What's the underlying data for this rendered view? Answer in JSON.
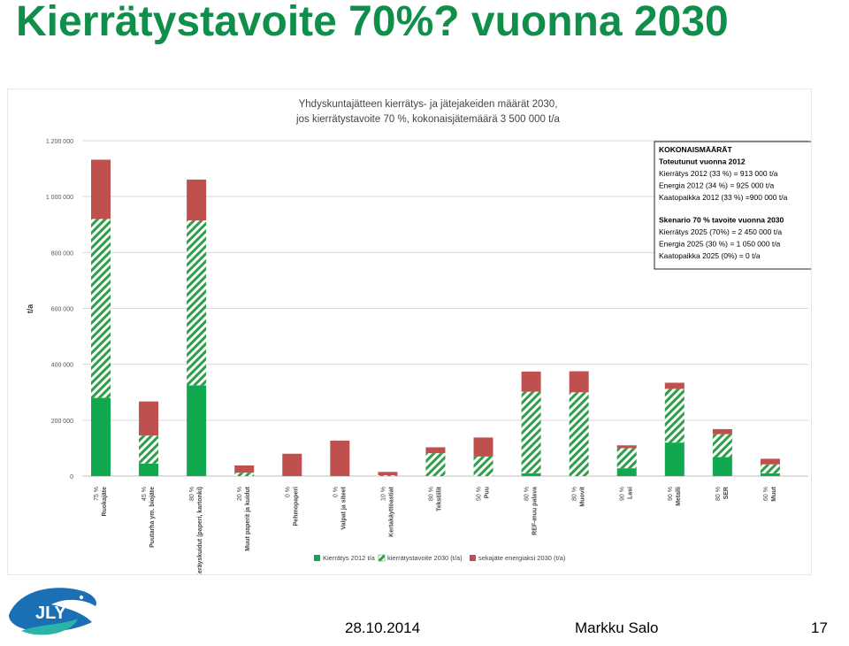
{
  "slide": {
    "title": "Kierrätystavoite 70%? vuonna 2030",
    "footer": {
      "date": "28.10.2014",
      "author": "Markku Salo",
      "page": "17"
    },
    "logo_text": "JLY"
  },
  "colors": {
    "green": "#12a84f",
    "hatch_green": "#2e9e4a",
    "red": "#c0504d",
    "title_green": "#0f8f4a",
    "logo_blue": "#1a6fb5",
    "logo_teal": "#2bb3a8"
  },
  "chart_data": {
    "type": "bar",
    "stacked": true,
    "title_lines": [
      "Yhdyskuntajätteen kierrätys- ja jätejakeiden määrät 2030,",
      "jos kierrätystavoite 70 %, kokonaisjätemäärä 3 500 000 t/a"
    ],
    "ylabel": "t/a",
    "ylim": [
      0,
      1200000
    ],
    "yticks": [
      0,
      200000,
      400000,
      600000,
      800000,
      1000000,
      1200000
    ],
    "ytick_labels": [
      "0",
      "200 000",
      "400 000",
      "600 000",
      "800 000",
      "1 000 000",
      "1 200 000"
    ],
    "grid": true,
    "legend_position": "bottom",
    "categories": [
      {
        "pct": "75 %",
        "name": "Ruokajäte"
      },
      {
        "pct": "45 %",
        "name": "Puutarha ym. biojäte"
      },
      {
        "pct": "80 %",
        "name": "Keräyskuidut (paperi, kartonki)"
      },
      {
        "pct": "20 %",
        "name": "Muut paperit ja kuidut"
      },
      {
        "pct": "0 %",
        "name": "Pehmopaperi"
      },
      {
        "pct": "0 %",
        "name": "Vaipat ja siteet"
      },
      {
        "pct": "10 %",
        "name": "Kertakäyttöastiat"
      },
      {
        "pct": "80 %",
        "name": "Tekstiilit"
      },
      {
        "pct": "50 %",
        "name": "Puu"
      },
      {
        "pct": "80 %",
        "name": "REF-muu palava"
      },
      {
        "pct": "80 %",
        "name": "Muovit"
      },
      {
        "pct": "90 %",
        "name": "Lasi"
      },
      {
        "pct": "90 %",
        "name": "Metalli"
      },
      {
        "pct": "80 %",
        "name": "SER"
      },
      {
        "pct": "60 %",
        "name": "Muut"
      }
    ],
    "series": [
      {
        "name": "Kierrätys 2012 t/a",
        "style": "solid-green",
        "values": [
          280000,
          45000,
          325000,
          0,
          0,
          0,
          0,
          0,
          0,
          10000,
          0,
          28000,
          120000,
          68000,
          10000
        ]
      },
      {
        "name": "kierrätystavoite 2030 (t/a)",
        "style": "hatched-green",
        "values": [
          640000,
          100000,
          590000,
          12000,
          0,
          0,
          3000,
          82000,
          70000,
          292000,
          300000,
          72000,
          192000,
          82000,
          32000
        ]
      },
      {
        "name": "sekajäte energiaksi 2030 (t/a)",
        "style": "solid-red",
        "values": [
          212000,
          122000,
          146000,
          26000,
          80000,
          127000,
          12000,
          21000,
          68000,
          72000,
          75000,
          10000,
          22000,
          18000,
          20000
        ]
      }
    ],
    "info_box": {
      "heading": "KOKONAISMÄÄRÄT",
      "lines_bold": [
        "Toteutunut vuonna 2012"
      ],
      "lines": [
        "Kierrätys 2012 (33 %) = 913 000 t/a",
        "Energia 2012 (34 %) = 925 000 t/a",
        "Kaatopaikka 2012 (33 %) =900 000 t/a"
      ],
      "scenario_heading": "Skenario 70 % tavoite vuonna 2030",
      "scenario_lines": [
        "Kierrätys 2025 (70%) = 2 450 000 t/a",
        "Energia 2025 (30 %) = 1 050 000 t/a",
        "Kaatopaikka 2025 (0%) = 0 t/a"
      ]
    }
  }
}
